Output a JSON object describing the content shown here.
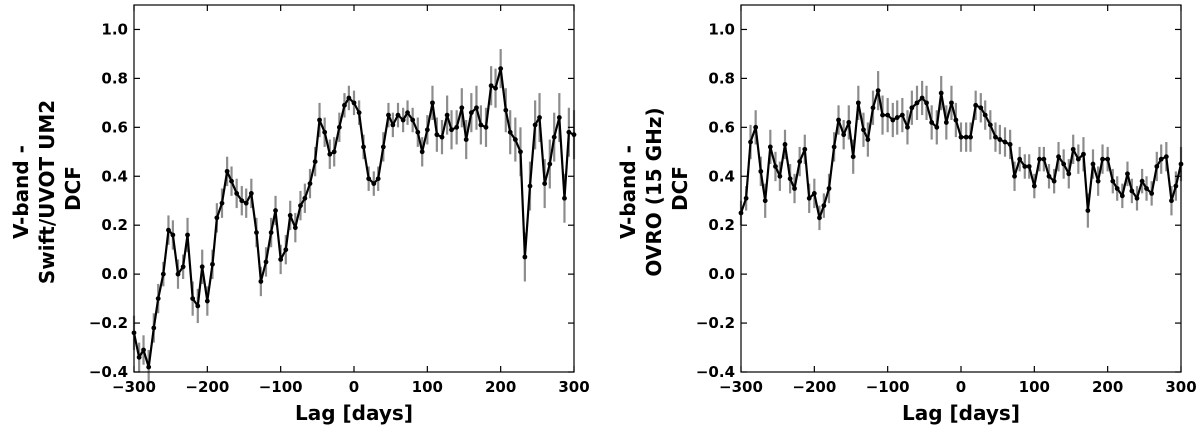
{
  "chart_data": [
    {
      "type": "line",
      "xlabel": "Lag [days]",
      "ylabel_lines": [
        "V-band -",
        "Swift/UVOT UM2",
        "DCF"
      ],
      "xlim": [
        -300,
        300
      ],
      "ylim": [
        -0.4,
        1.1
      ],
      "xticks": [
        -300,
        -200,
        -100,
        0,
        100,
        200,
        300
      ],
      "yticks": [
        -0.4,
        -0.2,
        0.0,
        0.2,
        0.4,
        0.6,
        0.8,
        1.0
      ],
      "xtick_labels": [
        "−300",
        "−200",
        "−100",
        "0",
        "100",
        "200",
        "300"
      ],
      "ytick_labels": [
        "−0.4",
        "−0.2",
        "0.0",
        "0.2",
        "0.4",
        "0.6",
        "0.8",
        "1.0"
      ],
      "grid": false,
      "series": [
        {
          "x": [
            -300,
            -293,
            -287,
            -280,
            -273,
            -267,
            -260,
            -253,
            -247,
            -240,
            -233,
            -227,
            -220,
            -213,
            -207,
            -200,
            -193,
            -187,
            -180,
            -173,
            -167,
            -160,
            -153,
            -147,
            -140,
            -133,
            -127,
            -120,
            -113,
            -107,
            -100,
            -93,
            -87,
            -80,
            -73,
            -67,
            -60,
            -53,
            -47,
            -40,
            -33,
            -27,
            -20,
            -13,
            -7,
            0,
            7,
            13,
            20,
            27,
            33,
            40,
            47,
            53,
            60,
            67,
            73,
            80,
            87,
            93,
            100,
            107,
            113,
            120,
            127,
            133,
            140,
            147,
            153,
            160,
            167,
            173,
            180,
            187,
            193,
            200,
            207,
            213,
            220,
            227,
            233,
            240,
            247,
            253,
            260,
            267,
            273,
            280,
            287,
            293,
            300
          ],
          "y": [
            -0.24,
            -0.34,
            -0.31,
            -0.38,
            -0.22,
            -0.1,
            0.0,
            0.18,
            0.16,
            0.0,
            0.03,
            0.16,
            -0.1,
            -0.13,
            0.03,
            -0.11,
            0.04,
            0.23,
            0.29,
            0.42,
            0.38,
            0.33,
            0.3,
            0.29,
            0.33,
            0.17,
            -0.03,
            0.05,
            0.17,
            0.26,
            0.06,
            0.1,
            0.24,
            0.19,
            0.28,
            0.31,
            0.37,
            0.46,
            0.63,
            0.58,
            0.49,
            0.5,
            0.6,
            0.69,
            0.72,
            0.7,
            0.66,
            0.52,
            0.39,
            0.37,
            0.39,
            0.52,
            0.65,
            0.61,
            0.65,
            0.63,
            0.66,
            0.63,
            0.58,
            0.5,
            0.59,
            0.7,
            0.57,
            0.56,
            0.65,
            0.59,
            0.6,
            0.68,
            0.55,
            0.66,
            0.68,
            0.61,
            0.6,
            0.77,
            0.76,
            0.84,
            0.67,
            0.58,
            0.55,
            0.5,
            0.07,
            0.36,
            0.61,
            0.64,
            0.37,
            0.45,
            0.56,
            0.64,
            0.31,
            0.58,
            0.57
          ],
          "err": [
            0.07,
            0.06,
            0.06,
            0.07,
            0.06,
            0.06,
            0.05,
            0.06,
            0.06,
            0.06,
            0.05,
            0.07,
            0.07,
            0.07,
            0.07,
            0.06,
            0.06,
            0.06,
            0.06,
            0.06,
            0.06,
            0.06,
            0.06,
            0.06,
            0.06,
            0.06,
            0.06,
            0.06,
            0.06,
            0.06,
            0.06,
            0.06,
            0.06,
            0.06,
            0.06,
            0.06,
            0.06,
            0.06,
            0.07,
            0.06,
            0.06,
            0.06,
            0.06,
            0.05,
            0.05,
            0.05,
            0.05,
            0.05,
            0.05,
            0.05,
            0.05,
            0.06,
            0.05,
            0.05,
            0.05,
            0.05,
            0.05,
            0.05,
            0.06,
            0.06,
            0.06,
            0.07,
            0.07,
            0.07,
            0.08,
            0.08,
            0.07,
            0.08,
            0.08,
            0.08,
            0.09,
            0.08,
            0.08,
            0.08,
            0.08,
            0.08,
            0.09,
            0.09,
            0.09,
            0.1,
            0.1,
            0.1,
            0.1,
            0.1,
            0.1,
            0.1,
            0.1,
            0.1,
            0.1,
            0.1,
            0.1
          ]
        }
      ]
    },
    {
      "type": "line",
      "xlabel": "Lag [days]",
      "ylabel_lines": [
        "V-band -",
        "OVRO (15 GHz)",
        "DCF"
      ],
      "xlim": [
        -300,
        300
      ],
      "ylim": [
        -0.4,
        1.1
      ],
      "xticks": [
        -300,
        -200,
        -100,
        0,
        100,
        200,
        300
      ],
      "yticks": [
        -0.4,
        -0.2,
        0.0,
        0.2,
        0.4,
        0.6,
        0.8,
        1.0
      ],
      "xtick_labels": [
        "−300",
        "−200",
        "−100",
        "0",
        "100",
        "200",
        "300"
      ],
      "ytick_labels": [
        "−0.4",
        "−0.2",
        "0.0",
        "0.2",
        "0.4",
        "0.6",
        "0.8",
        "1.0"
      ],
      "grid": false,
      "series": [
        {
          "x": [
            -300,
            -293,
            -287,
            -280,
            -273,
            -267,
            -260,
            -253,
            -247,
            -240,
            -233,
            -227,
            -220,
            -213,
            -207,
            -200,
            -193,
            -187,
            -180,
            -173,
            -167,
            -160,
            -153,
            -147,
            -140,
            -133,
            -127,
            -120,
            -113,
            -107,
            -100,
            -93,
            -87,
            -80,
            -73,
            -67,
            -60,
            -53,
            -47,
            -40,
            -33,
            -27,
            -20,
            -13,
            -7,
            0,
            7,
            13,
            20,
            27,
            33,
            40,
            47,
            53,
            60,
            67,
            73,
            80,
            87,
            93,
            100,
            107,
            113,
            120,
            127,
            133,
            140,
            147,
            153,
            160,
            167,
            173,
            180,
            187,
            193,
            200,
            207,
            213,
            220,
            227,
            233,
            240,
            247,
            253,
            260,
            267,
            273,
            280,
            287,
            293,
            300
          ],
          "y": [
            0.25,
            0.31,
            0.54,
            0.6,
            0.42,
            0.3,
            0.52,
            0.44,
            0.4,
            0.53,
            0.39,
            0.35,
            0.46,
            0.51,
            0.31,
            0.33,
            0.23,
            0.28,
            0.35,
            0.52,
            0.63,
            0.57,
            0.62,
            0.48,
            0.7,
            0.59,
            0.55,
            0.68,
            0.75,
            0.65,
            0.65,
            0.63,
            0.64,
            0.65,
            0.6,
            0.68,
            0.7,
            0.72,
            0.7,
            0.62,
            0.6,
            0.74,
            0.62,
            0.7,
            0.63,
            0.56,
            0.56,
            0.56,
            0.69,
            0.68,
            0.65,
            0.61,
            0.56,
            0.55,
            0.54,
            0.53,
            0.4,
            0.47,
            0.44,
            0.44,
            0.36,
            0.47,
            0.47,
            0.4,
            0.38,
            0.48,
            0.45,
            0.41,
            0.51,
            0.47,
            0.49,
            0.26,
            0.45,
            0.38,
            0.47,
            0.47,
            0.38,
            0.35,
            0.32,
            0.41,
            0.34,
            0.31,
            0.38,
            0.35,
            0.33,
            0.44,
            0.47,
            0.48,
            0.3,
            0.36,
            0.45
          ],
          "err": [
            0.05,
            0.05,
            0.07,
            0.07,
            0.06,
            0.07,
            0.07,
            0.06,
            0.06,
            0.06,
            0.06,
            0.06,
            0.06,
            0.06,
            0.06,
            0.06,
            0.05,
            0.05,
            0.06,
            0.06,
            0.06,
            0.06,
            0.07,
            0.07,
            0.07,
            0.07,
            0.07,
            0.07,
            0.08,
            0.08,
            0.07,
            0.07,
            0.07,
            0.07,
            0.07,
            0.07,
            0.07,
            0.07,
            0.07,
            0.07,
            0.07,
            0.07,
            0.07,
            0.07,
            0.07,
            0.06,
            0.06,
            0.06,
            0.06,
            0.06,
            0.06,
            0.06,
            0.06,
            0.06,
            0.06,
            0.06,
            0.06,
            0.05,
            0.05,
            0.05,
            0.05,
            0.05,
            0.05,
            0.05,
            0.05,
            0.06,
            0.06,
            0.06,
            0.06,
            0.06,
            0.07,
            0.07,
            0.06,
            0.06,
            0.06,
            0.05,
            0.05,
            0.05,
            0.05,
            0.05,
            0.05,
            0.05,
            0.05,
            0.05,
            0.05,
            0.06,
            0.06,
            0.06,
            0.06,
            0.06,
            0.07
          ]
        }
      ]
    }
  ],
  "style": {
    "line_color": "#000000",
    "marker_color": "#000000",
    "errorbar_color": "#8c8c8c"
  }
}
